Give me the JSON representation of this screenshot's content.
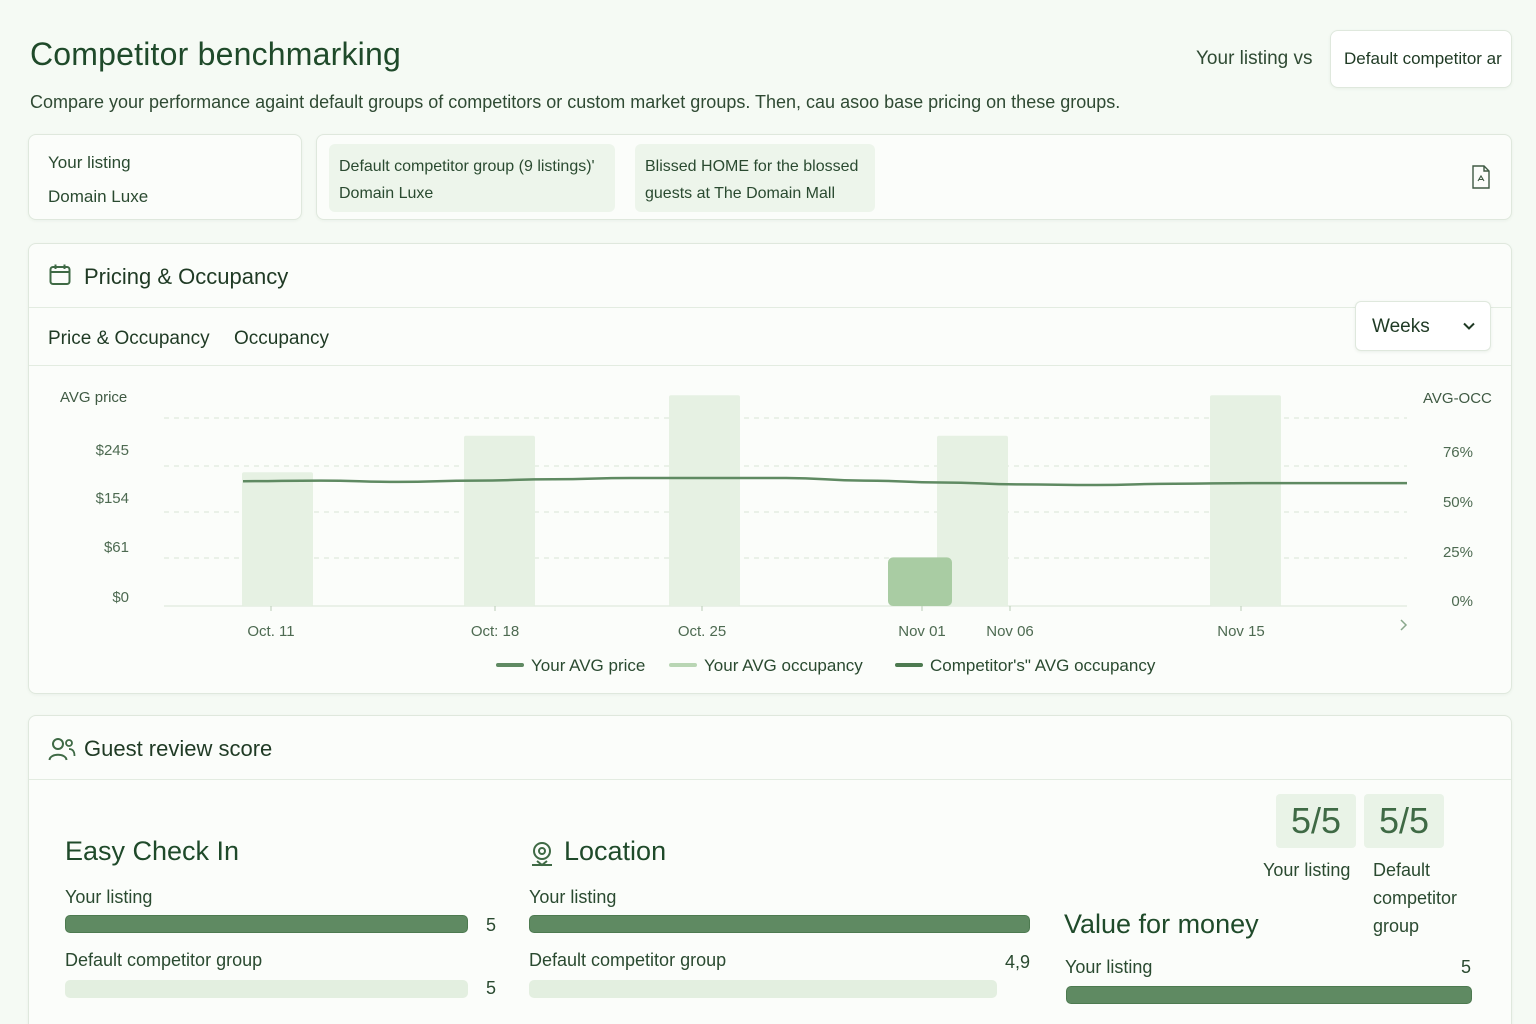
{
  "header": {
    "title": "Competitor benchmarking",
    "subtitle": "Compare your performance againt default groups of competitors or custom market groups. Then, cau asoo base pricing on these groups.",
    "vs_label": "Your listing vs",
    "vs_select_value": "Default competitor ar"
  },
  "listing_card": {
    "label": "Your listing",
    "value": "Domain Luxe"
  },
  "groups": [
    {
      "line1": "Default competitor group (9 listings)'",
      "line2": "Domain Luxe"
    },
    {
      "line1": "Blissed HOME for the blossed",
      "line2": "guests at The Domain Mall"
    }
  ],
  "pricing": {
    "title": "Pricing & Occupancy",
    "tabs": [
      "Price & Occupancy",
      "Occupancy"
    ],
    "period_select": "Weeks"
  },
  "chart_data": {
    "type": "bar",
    "left_axis_title": "AVG price",
    "right_axis_title": "AVG-OCC",
    "left_ticks": [
      "$245",
      "$154",
      "$61",
      "$0"
    ],
    "right_ticks": [
      "76%",
      "50%",
      "25%",
      "0%"
    ],
    "x_labels": [
      "Oct. 11",
      "Oct: 18",
      "Oct. 25",
      "Nov 01",
      "Nov 06",
      "Nov 15"
    ],
    "occupancy_pct": [
      66,
      84,
      104,
      84,
      104
    ],
    "competitor_occupancy_pct": [
      24
    ],
    "avg_price_line": [
      196,
      197,
      195,
      197,
      199,
      201,
      201,
      201,
      197,
      194,
      191,
      190,
      192,
      193,
      193,
      193
    ],
    "legend": [
      {
        "name": "Your AVG price",
        "color": "#5f8a62"
      },
      {
        "name": "Your AVG occupancy",
        "color": "#b9d6b4"
      },
      {
        "name": "Competitor's\" AVG occupancy",
        "color": "#4d7a50"
      }
    ],
    "colors": {
      "bar": "#e6f1e3",
      "bar_highlight": "#a9cca3",
      "line": "#5f8a62",
      "grid": "#d9e5d6"
    }
  },
  "review": {
    "title": "Guest review score",
    "metrics": [
      {
        "title": "Easy Check In",
        "rows": [
          {
            "label": "Your listing",
            "value": "5",
            "fraction": 1.0
          },
          {
            "label": "Default competitor group",
            "value": "5",
            "fraction": 1.0
          }
        ]
      },
      {
        "title": "Location",
        "rows": [
          {
            "label": "Your listing",
            "value": "",
            "fraction": 1.0
          },
          {
            "label": "Default competitor group",
            "value": "4,9",
            "fraction": 0.93
          }
        ]
      },
      {
        "title": "Value for money",
        "rows": [
          {
            "label": "Your listing",
            "value": "5",
            "fraction": 1.0
          }
        ]
      }
    ],
    "scores": [
      {
        "score": "5/5",
        "caption": "Your listing"
      },
      {
        "score": "5/5",
        "caption": "Default competitor group"
      }
    ]
  }
}
